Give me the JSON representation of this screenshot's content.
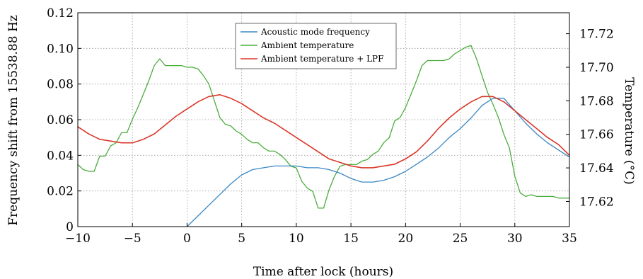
{
  "chart_data": {
    "type": "line",
    "xlabel": "Time after lock (hours)",
    "ylabel": "Frequency shift from 15538.88 Hz",
    "y2label": "Temperature (°C)",
    "xlim": [
      -10,
      35
    ],
    "ylim": [
      0,
      0.12
    ],
    "y2lim": [
      17.605,
      17.7325
    ],
    "xticks": [
      -10,
      -5,
      0,
      5,
      10,
      15,
      20,
      25,
      30,
      35
    ],
    "xtick_labels": [
      "−10",
      "−5",
      "0",
      "5",
      "10",
      "15",
      "20",
      "25",
      "30",
      "35"
    ],
    "yticks": [
      0,
      0.02,
      0.04,
      0.06,
      0.08,
      0.1,
      0.12
    ],
    "ytick_labels": [
      "0",
      "0.02",
      "0.04",
      "0.06",
      "0.08",
      "0.10",
      "0.12"
    ],
    "y2ticks": [
      17.62,
      17.64,
      17.66,
      17.68,
      17.7,
      17.72
    ],
    "y2tick_labels": [
      "17.62",
      "17.64",
      "17.66",
      "17.68",
      "17.70",
      "17.72"
    ],
    "grid": true,
    "legend": "top-center",
    "series": [
      {
        "name": "Acoustic mode frequency",
        "axis": "left",
        "color": "#3a87c4",
        "x": [
          0,
          1,
          2,
          3,
          4,
          5,
          6,
          7,
          8,
          9,
          10,
          11,
          12,
          13,
          14,
          15,
          16,
          17,
          18,
          19,
          20,
          21,
          22,
          23,
          24,
          25,
          26,
          27,
          28,
          29,
          30,
          31,
          32,
          33,
          34,
          35
        ],
        "y": [
          0.0,
          0.006,
          0.012,
          0.018,
          0.024,
          0.029,
          0.032,
          0.033,
          0.034,
          0.034,
          0.034,
          0.033,
          0.033,
          0.032,
          0.03,
          0.027,
          0.025,
          0.025,
          0.026,
          0.028,
          0.031,
          0.035,
          0.039,
          0.044,
          0.05,
          0.055,
          0.061,
          0.068,
          0.072,
          0.072,
          0.065,
          0.058,
          0.052,
          0.047,
          0.043,
          0.039
        ]
      },
      {
        "name": "Ambient temperature",
        "axis": "right",
        "color": "#4aad3c",
        "x": [
          -10,
          -9.5,
          -9,
          -8.5,
          -8,
          -7.5,
          -7,
          -6.5,
          -6,
          -5.5,
          -5,
          -4.5,
          -4,
          -3.5,
          -3,
          -2.5,
          -2,
          -1.5,
          -1,
          -0.5,
          0,
          0.5,
          1,
          1.5,
          2,
          2.5,
          3,
          3.5,
          4,
          4.5,
          5,
          5.5,
          6,
          6.5,
          7,
          7.5,
          8,
          8.5,
          9,
          9.5,
          10,
          10.5,
          11,
          11.5,
          12,
          12.5,
          13,
          13.5,
          14,
          14.5,
          15,
          15.5,
          16,
          16.5,
          17,
          17.5,
          18,
          18.5,
          19,
          19.5,
          20,
          20.5,
          21,
          21.5,
          22,
          22.5,
          23,
          23.5,
          24,
          24.5,
          25,
          25.5,
          26,
          26.5,
          27,
          27.5,
          28,
          28.5,
          29,
          29.5,
          30,
          30.5,
          31,
          31.5,
          32,
          32.5,
          33,
          33.5,
          34,
          34.5,
          35
        ],
        "y": [
          17.642,
          17.639,
          17.638,
          17.638,
          17.647,
          17.647,
          17.653,
          17.655,
          17.661,
          17.661,
          17.669,
          17.676,
          17.684,
          17.692,
          17.701,
          17.705,
          17.701,
          17.701,
          17.701,
          17.701,
          17.7,
          17.7,
          17.699,
          17.695,
          17.69,
          17.68,
          17.67,
          17.666,
          17.665,
          17.662,
          17.66,
          17.657,
          17.655,
          17.655,
          17.652,
          17.65,
          17.65,
          17.648,
          17.645,
          17.641,
          17.64,
          17.632,
          17.628,
          17.626,
          17.616,
          17.616,
          17.627,
          17.635,
          17.641,
          17.642,
          17.642,
          17.642,
          17.644,
          17.645,
          17.648,
          17.65,
          17.655,
          17.658,
          17.668,
          17.67,
          17.676,
          17.684,
          17.692,
          17.701,
          17.704,
          17.704,
          17.704,
          17.704,
          17.705,
          17.708,
          17.71,
          17.712,
          17.713,
          17.705,
          17.695,
          17.685,
          17.678,
          17.67,
          17.66,
          17.652,
          17.635,
          17.625,
          17.623,
          17.624,
          17.623,
          17.623,
          17.623,
          17.623,
          17.622,
          17.622,
          17.622
        ]
      },
      {
        "name": "Ambient temperature + LPF",
        "axis": "left",
        "color": "#d9372a",
        "x": [
          -10,
          -9,
          -8,
          -7,
          -6,
          -5,
          -4,
          -3,
          -2,
          -1,
          0,
          1,
          2,
          3,
          4,
          5,
          6,
          7,
          8,
          9,
          10,
          11,
          12,
          13,
          14,
          15,
          16,
          17,
          18,
          19,
          20,
          21,
          22,
          23,
          24,
          25,
          26,
          27,
          28,
          29,
          30,
          31,
          32,
          33,
          34,
          35
        ],
        "y": [
          0.056,
          0.052,
          0.049,
          0.048,
          0.047,
          0.047,
          0.049,
          0.052,
          0.057,
          0.062,
          0.066,
          0.07,
          0.073,
          0.074,
          0.072,
          0.069,
          0.065,
          0.061,
          0.058,
          0.054,
          0.05,
          0.046,
          0.042,
          0.038,
          0.036,
          0.034,
          0.033,
          0.033,
          0.034,
          0.035,
          0.038,
          0.042,
          0.048,
          0.055,
          0.061,
          0.066,
          0.07,
          0.073,
          0.073,
          0.07,
          0.065,
          0.06,
          0.055,
          0.05,
          0.046,
          0.04
        ]
      }
    ]
  }
}
